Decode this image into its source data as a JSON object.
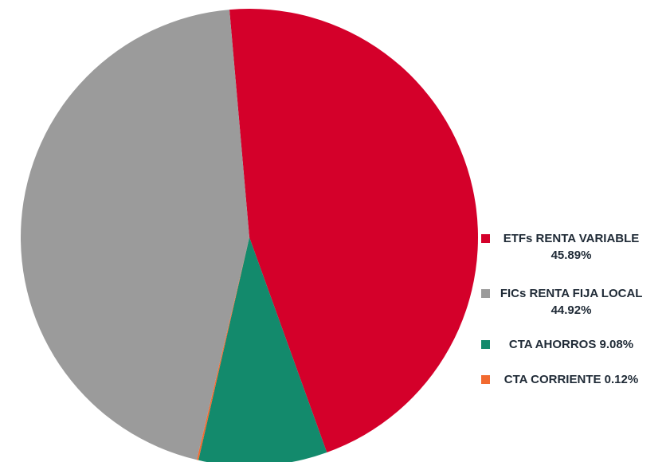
{
  "chart_data": {
    "type": "pie",
    "categories": [
      "ETFs RENTA VARIABLE",
      "FICs RENTA FIJA LOCAL",
      "CTA AHORROS",
      "CTA CORRIENTE"
    ],
    "values": [
      45.89,
      44.92,
      9.08,
      0.12
    ],
    "value_labels": [
      "45.89%",
      "44.92%",
      "9.08%",
      "0.12%"
    ],
    "colors": [
      "#d4002a",
      "#9b9b9b",
      "#138a6c",
      "#f26a30"
    ],
    "legend": "right"
  }
}
